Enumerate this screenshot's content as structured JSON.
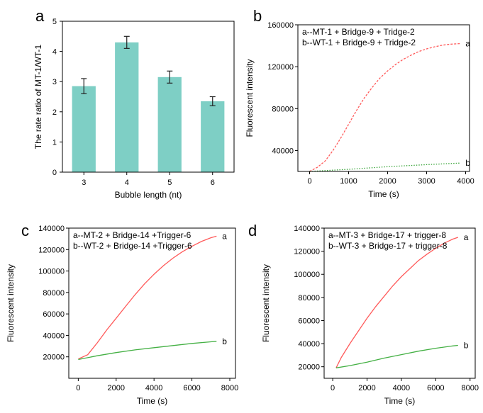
{
  "chart_data": [
    {
      "panel": "a",
      "type": "bar",
      "categories": [
        "3",
        "4",
        "5",
        "6"
      ],
      "values": [
        2.85,
        4.3,
        3.15,
        2.35
      ],
      "errors": [
        0.25,
        0.2,
        0.2,
        0.15
      ],
      "xlabel": "Bubble length (nt)",
      "ylabel": "The rate ratio of MT-1/WT-1",
      "ylim": [
        0,
        5
      ],
      "yticks": [
        "0",
        "1",
        "2",
        "3",
        "4",
        "5"
      ],
      "bar_color": "#7ecfc5",
      "error_color": "#222222"
    },
    {
      "panel": "b",
      "type": "line",
      "xlabel": "Time (s)",
      "ylabel": "Fluorescent intensity",
      "xlim": [
        -300,
        4100
      ],
      "ylim": [
        20000,
        160000
      ],
      "xticks": [
        "0",
        "1000",
        "2000",
        "3000",
        "4000"
      ],
      "yticks": [
        "40000",
        "80000",
        "120000",
        "160000"
      ],
      "legend": [
        "a--MT-1 + Bridge-9 + Tridge-2",
        "b--WT-1 + Bridge-9 + Tridge-2"
      ],
      "series": [
        {
          "label": "a",
          "color": "#ff5a5a",
          "style": "dashed",
          "x": [
            0,
            200,
            400,
            600,
            800,
            1000,
            1200,
            1400,
            1600,
            1800,
            2000,
            2200,
            2400,
            2600,
            2800,
            3000,
            3200,
            3400,
            3600,
            3850
          ],
          "y": [
            20000,
            24000,
            30000,
            40000,
            52000,
            65000,
            78000,
            90000,
            100000,
            109000,
            116000,
            122000,
            127000,
            131000,
            134500,
            137000,
            139000,
            140500,
            141500,
            142000
          ]
        },
        {
          "label": "b",
          "color": "#3aa53a",
          "style": "dotted",
          "x": [
            0,
            1000,
            2000,
            3000,
            3850
          ],
          "y": [
            20000,
            22000,
            24500,
            26500,
            28000
          ]
        }
      ]
    },
    {
      "panel": "c",
      "type": "line",
      "xlabel": "Time (s)",
      "ylabel": "Fluorescent intensity",
      "xlim": [
        -500,
        8300
      ],
      "ylim": [
        0,
        140000
      ],
      "xticks": [
        "0",
        "2000",
        "4000",
        "6000",
        "8000"
      ],
      "yticks": [
        "20000",
        "40000",
        "60000",
        "80000",
        "100000",
        "120000",
        "140000"
      ],
      "legend": [
        "a--MT-2 + Bridge-14 +Trigger-6",
        "b--WT-2 + Bridge-14 +Trigger-6"
      ],
      "series": [
        {
          "label": "a",
          "color": "#ff5a5a",
          "style": "solid",
          "x": [
            0,
            500,
            1000,
            1500,
            2000,
            2500,
            3000,
            3500,
            4000,
            4500,
            5000,
            5500,
            6000,
            6500,
            7000,
            7300
          ],
          "y": [
            18000,
            22000,
            33000,
            45000,
            56000,
            67000,
            78000,
            88000,
            97000,
            105000,
            112000,
            118000,
            123000,
            127500,
            131000,
            132500
          ]
        },
        {
          "label": "b",
          "color": "#44b044",
          "style": "solid",
          "x": [
            0,
            1000,
            2000,
            3000,
            4000,
            5000,
            6000,
            7000,
            7300
          ],
          "y": [
            17500,
            21000,
            24000,
            26500,
            28500,
            30500,
            32500,
            34000,
            34500
          ]
        }
      ]
    },
    {
      "panel": "d",
      "type": "line",
      "xlabel": "Time (s)",
      "ylabel": "Fluorescent intensity",
      "xlim": [
        -500,
        8300
      ],
      "ylim": [
        10000,
        140000
      ],
      "xticks": [
        "0",
        "2000",
        "4000",
        "6000",
        "8000"
      ],
      "yticks": [
        "20000",
        "40000",
        "60000",
        "80000",
        "100000",
        "120000",
        "140000"
      ],
      "legend": [
        "a--MT-3 + Bridge-17 + trigger-8",
        "b--WT-3 + Bridge-17 + trigger-8"
      ],
      "series": [
        {
          "label": "a",
          "color": "#ff5a5a",
          "style": "solid",
          "x": [
            200,
            500,
            1000,
            1500,
            2000,
            2500,
            3000,
            3500,
            4000,
            4500,
            5000,
            5500,
            6000,
            6500,
            7000,
            7300
          ],
          "y": [
            19000,
            28000,
            40000,
            51000,
            62000,
            72000,
            81000,
            90000,
            98000,
            105000,
            112000,
            117500,
            122500,
            127000,
            130500,
            132000
          ]
        },
        {
          "label": "b",
          "color": "#44b044",
          "style": "solid",
          "x": [
            200,
            1000,
            2000,
            3000,
            4000,
            5000,
            6000,
            7000,
            7300
          ],
          "y": [
            19000,
            21000,
            24000,
            27500,
            30500,
            33500,
            36000,
            38000,
            38500
          ]
        }
      ]
    }
  ]
}
